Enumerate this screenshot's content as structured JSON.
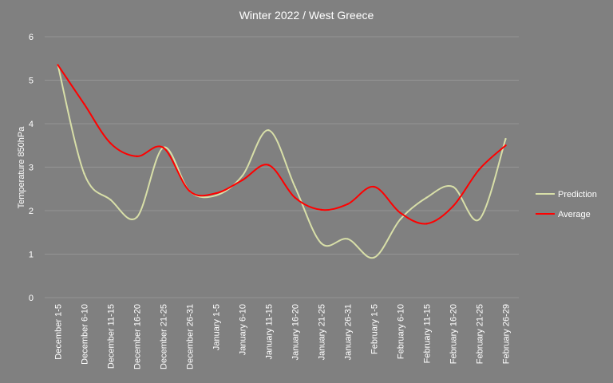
{
  "chart_data": {
    "type": "line",
    "title": "Winter 2022 / West Greece",
    "xlabel": "",
    "ylabel": "Temperature 850hPa",
    "ylim": [
      0,
      6
    ],
    "yticks": [
      0,
      1,
      2,
      3,
      4,
      5,
      6
    ],
    "grid": true,
    "legend_position": "right",
    "categories": [
      "December 1-5",
      "December 6-10",
      "December 11-15",
      "December 16-20",
      "December 21-25",
      "December 26-31",
      "January 1-5",
      "January 6-10",
      "January 11-15",
      "January 16-20",
      "January 21-25",
      "January 26-31",
      "February 1-5",
      "February 6-10",
      "February 11-15",
      "February 16-20",
      "February 21-25",
      "February 26-29"
    ],
    "series": [
      {
        "name": "Prediction",
        "color": "#d8dfa8",
        "values": [
          5.35,
          2.85,
          2.25,
          1.85,
          3.45,
          2.45,
          2.35,
          2.8,
          3.85,
          2.55,
          1.25,
          1.35,
          0.92,
          1.8,
          2.3,
          2.55,
          1.8,
          3.65
        ]
      },
      {
        "name": "Average",
        "color": "#ff0000",
        "values": [
          5.35,
          4.45,
          3.55,
          3.25,
          3.45,
          2.45,
          2.4,
          2.7,
          3.05,
          2.3,
          2.02,
          2.15,
          2.55,
          1.95,
          1.7,
          2.1,
          2.95,
          3.5
        ]
      }
    ]
  }
}
